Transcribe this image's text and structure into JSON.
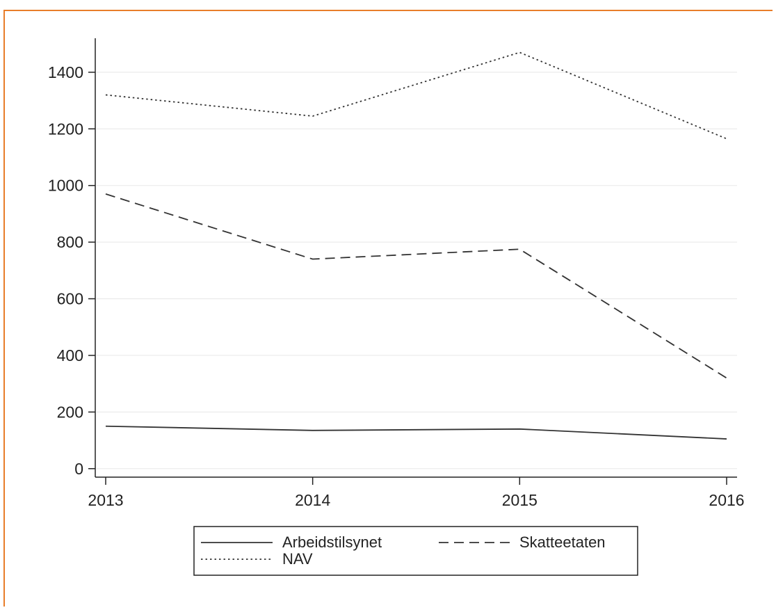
{
  "chart_data": {
    "type": "line",
    "title": "",
    "xlabel": "",
    "ylabel": "",
    "x": [
      2013,
      2014,
      2015,
      2016
    ],
    "xticks": [
      "2013",
      "2014",
      "2015",
      "2016"
    ],
    "yticks": [
      "0",
      "200",
      "400",
      "600",
      "800",
      "1000",
      "1200",
      "1400"
    ],
    "ylim": [
      -30,
      1520
    ],
    "grid": true,
    "legend_position": "bottom",
    "series": [
      {
        "name": "Arbeidstilsynet",
        "style": "solid",
        "values": [
          150,
          135,
          140,
          105
        ]
      },
      {
        "name": "Skatteetaten",
        "style": "dashed",
        "values": [
          970,
          740,
          775,
          320
        ]
      },
      {
        "name": "NAV",
        "style": "dotted",
        "values": [
          1320,
          1245,
          1470,
          1165
        ]
      }
    ],
    "colors": {
      "line": "#333333",
      "grid": "#ebebeb",
      "axis": "#222222",
      "frame": "#e87d2a"
    }
  }
}
